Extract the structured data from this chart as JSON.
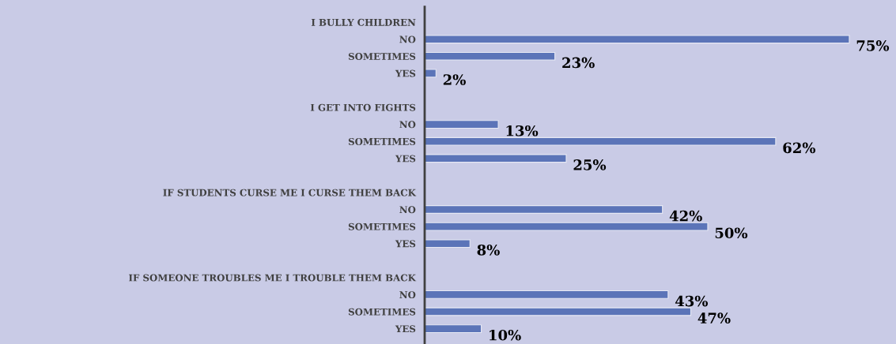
{
  "chart_data": {
    "type": "bar",
    "orientation": "horizontal",
    "tick_labels": "y",
    "color": "#5b74b8",
    "categories": [
      "I BULLY CHILDREN",
      "NO",
      "SOMETIMES",
      "YES",
      null,
      "I GET INTO FIGHTS",
      "NO",
      "SOMETIMES",
      "YES",
      null,
      "IF STUDENTS CURSE ME I CURSE THEM BACK",
      "NO",
      "SOMETIMES",
      "YES",
      null,
      "IF SOMEONE TROUBLES ME I TROUBLE THEM BACK",
      "NO",
      "SOMETIMES",
      "YES"
    ],
    "values": [
      null,
      75,
      23,
      2,
      null,
      null,
      13,
      62,
      25,
      null,
      null,
      42,
      50,
      8,
      null,
      null,
      43,
      47,
      10
    ],
    "value_labels": [
      null,
      "75%",
      "23%",
      "2%",
      null,
      null,
      "13%",
      "62%",
      "25%",
      null,
      null,
      "42%",
      "50%",
      "8%",
      null,
      null,
      "43%",
      "47%",
      "10%"
    ]
  }
}
